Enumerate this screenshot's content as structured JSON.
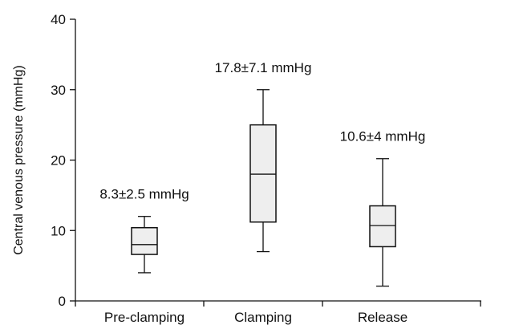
{
  "chart_data": {
    "type": "box",
    "title": "",
    "xlabel": "",
    "ylabel": "Central venous pressure (mmHg)",
    "ylim": [
      0,
      40
    ],
    "yticks": [
      0,
      10,
      20,
      30,
      40
    ],
    "grid": false,
    "categories": [
      "Pre-clamping",
      "Clamping",
      "Release"
    ],
    "boxes": [
      {
        "category": "Pre-clamping",
        "min": 4,
        "q1": 6.6,
        "median": 8,
        "q3": 10.4,
        "max": 12,
        "annotation": "8.3±2.5 mmHg"
      },
      {
        "category": "Clamping",
        "min": 7,
        "q1": 11.2,
        "median": 18,
        "q3": 25,
        "max": 30,
        "annotation": "17.8±7.1 mmHg"
      },
      {
        "category": "Release",
        "min": 2.1,
        "q1": 7.7,
        "median": 10.7,
        "q3": 13.5,
        "max": 20.2,
        "annotation": "10.6±4 mmHg"
      }
    ],
    "colors": {
      "box_fill": "#eeeeee",
      "stroke": "#111111"
    }
  }
}
